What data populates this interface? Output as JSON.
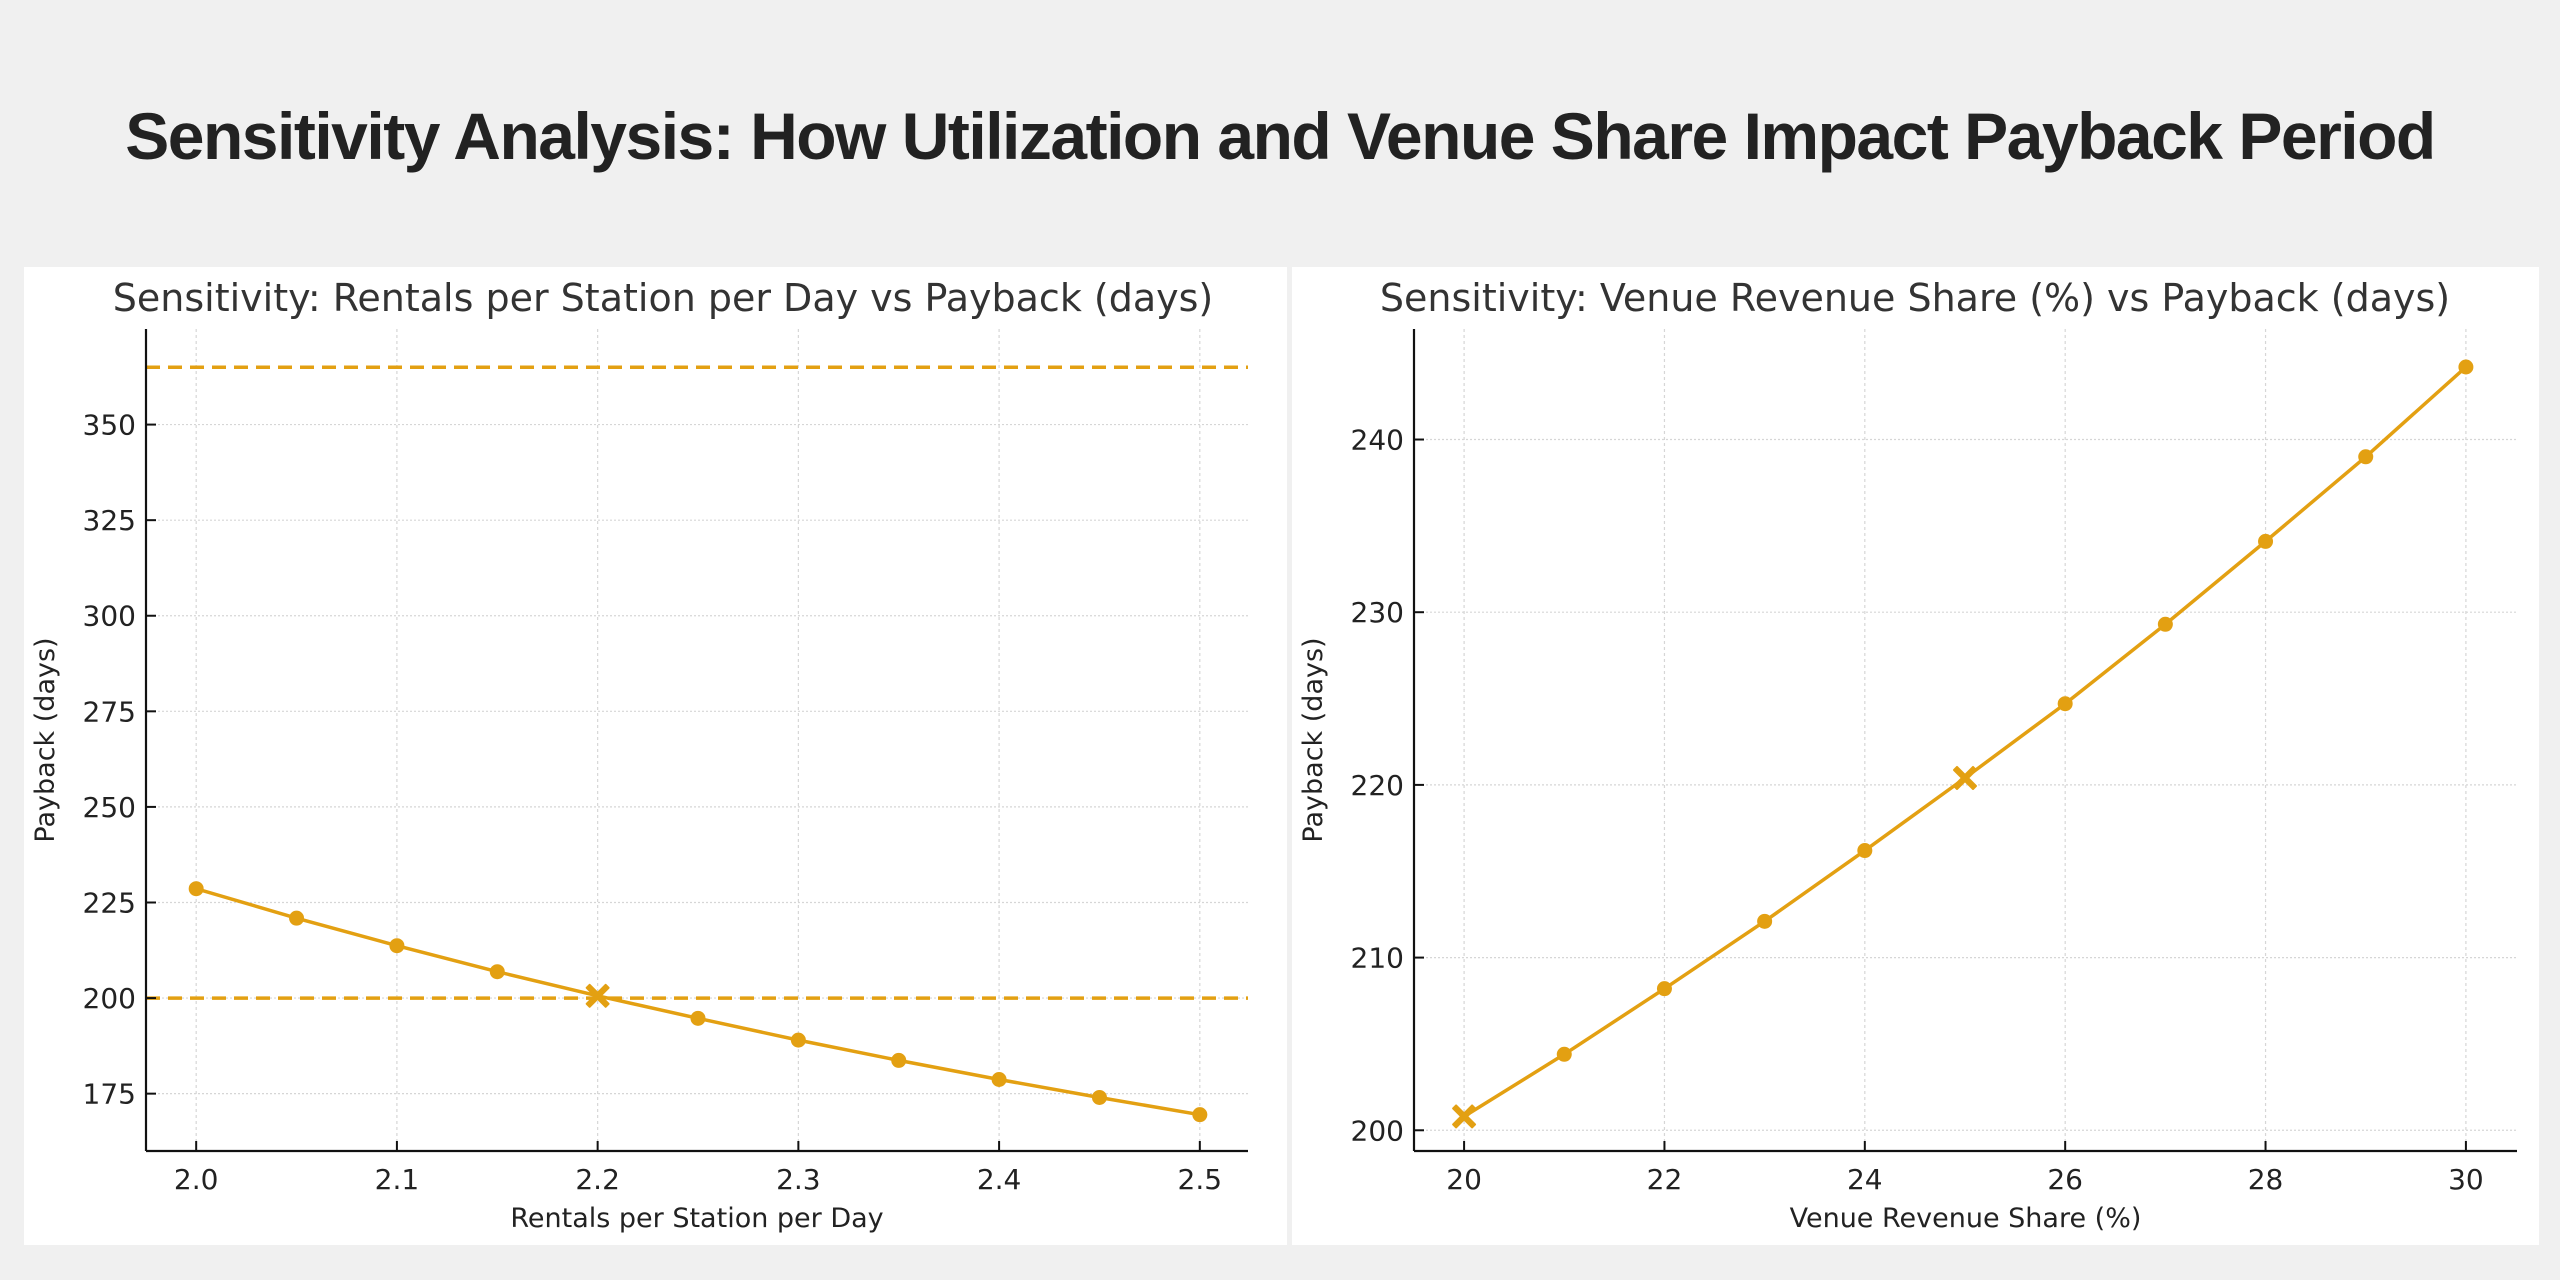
{
  "page": {
    "title": "Sensitivity Analysis: How Utilization and Venue Share Impact Payback Period",
    "background_color": "#f0f0f0",
    "accent_color": "#E3A012"
  },
  "chart_data": [
    {
      "id": "rentals",
      "type": "line",
      "title": "Sensitivity: Rentals per Station per Day vs Payback (days)",
      "xlabel": "Rentals per Station per Day",
      "ylabel": "Payback (days)",
      "x": [
        2.0,
        2.05,
        2.1,
        2.15,
        2.2,
        2.25,
        2.3,
        2.35,
        2.4,
        2.45,
        2.5
      ],
      "series": [
        {
          "name": "Payback (days)",
          "color": "#E3A012",
          "values": [
            228.6,
            220.9,
            213.7,
            206.9,
            200.6,
            194.7,
            189.0,
            183.7,
            178.7,
            174.0,
            169.5
          ]
        }
      ],
      "baseline_point": {
        "x": 2.2,
        "y": 200.6,
        "marker": "X"
      },
      "reference_lines": [
        {
          "y": 365,
          "style": "dashed",
          "color": "#E3A012"
        },
        {
          "y": 200,
          "style": "dashed",
          "color": "#E3A012"
        }
      ],
      "xticks": [
        2.0,
        2.1,
        2.2,
        2.3,
        2.4,
        2.5
      ],
      "xtick_labels": [
        "2.0",
        "2.1",
        "2.2",
        "2.3",
        "2.4",
        "2.5"
      ],
      "yticks": [
        175,
        200,
        225,
        250,
        275,
        300,
        325,
        350
      ],
      "ytick_labels": [
        "175",
        "200",
        "225",
        "250",
        "275",
        "300",
        "325",
        "350"
      ],
      "xlim": [
        1.975,
        2.524
      ],
      "ylim": [
        160,
        375
      ],
      "grid": true,
      "legend": "none"
    },
    {
      "id": "venue",
      "type": "line",
      "title": "Sensitivity: Venue Revenue Share (%) vs Payback (days)",
      "xlabel": "Venue Revenue Share (%)",
      "ylabel": "Payback (days)",
      "x": [
        20,
        21,
        22,
        23,
        24,
        25,
        26,
        27,
        28,
        29,
        30
      ],
      "series": [
        {
          "name": "Payback (days)",
          "color": "#E3A012",
          "values": [
            200.8,
            204.4,
            208.2,
            212.1,
            216.2,
            220.4,
            224.7,
            229.3,
            234.1,
            239.0,
            244.2
          ]
        }
      ],
      "baseline_point": {
        "x": 25,
        "y": 220.4,
        "marker": "X"
      },
      "start_point": {
        "x": 20,
        "y": 200.8,
        "marker": "X"
      },
      "reference_lines": [],
      "xticks": [
        20,
        22,
        24,
        26,
        28,
        30
      ],
      "xtick_labels": [
        "20",
        "22",
        "24",
        "26",
        "28",
        "30"
      ],
      "yticks": [
        200,
        210,
        220,
        230,
        240
      ],
      "ytick_labels": [
        "200",
        "210",
        "220",
        "230",
        "240"
      ],
      "xlim": [
        19.5,
        30.51
      ],
      "ylim": [
        198.8,
        246.4
      ],
      "grid": true,
      "legend": "none"
    }
  ]
}
